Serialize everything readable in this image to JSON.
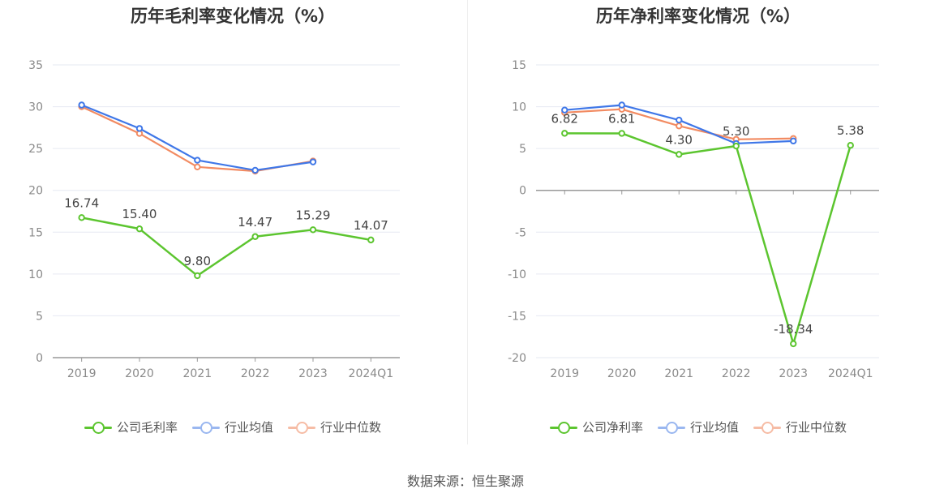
{
  "source_text": "数据来源：恒生聚源",
  "colors": {
    "company": "#5cc52f",
    "industry_avg": "#3f77e8",
    "industry_median": "#f28b62",
    "grid": "#e6e9f2",
    "axis": "#999999"
  },
  "chart_data": [
    {
      "type": "line",
      "title": "历年毛利率变化情况（%）",
      "categories": [
        "2019",
        "2020",
        "2021",
        "2022",
        "2023",
        "2024Q1"
      ],
      "ylim": [
        0,
        35
      ],
      "yticks": [
        0,
        5,
        10,
        15,
        20,
        25,
        30,
        35
      ],
      "ytick_labels": [
        "0",
        "5",
        "10",
        "15",
        "20",
        "25",
        "30",
        "35"
      ],
      "grid": true,
      "legend_position": "bottom",
      "series": [
        {
          "name": "公司毛利率",
          "key": "company",
          "values": [
            16.74,
            15.4,
            9.8,
            14.47,
            15.29,
            14.07
          ],
          "labels": [
            "16.74",
            "15.40",
            "9.80",
            "14.47",
            "15.29",
            "14.07"
          ]
        },
        {
          "name": "行业均值",
          "key": "industry_avg",
          "values": [
            30.2,
            27.4,
            23.6,
            22.4,
            23.4,
            null
          ]
        },
        {
          "name": "行业中位数",
          "key": "industry_median",
          "values": [
            30.0,
            26.8,
            22.8,
            22.3,
            23.5,
            null
          ]
        }
      ]
    },
    {
      "type": "line",
      "title": "历年净利率变化情况（%）",
      "categories": [
        "2019",
        "2020",
        "2021",
        "2022",
        "2023",
        "2024Q1"
      ],
      "ylim": [
        -20,
        15
      ],
      "yticks": [
        -20,
        -15,
        -10,
        -5,
        0,
        5,
        10,
        15
      ],
      "ytick_labels": [
        "-20",
        "-15",
        "-10",
        "-5",
        "0",
        "5",
        "10",
        "15"
      ],
      "grid": true,
      "legend_position": "bottom",
      "series": [
        {
          "name": "公司净利率",
          "key": "company",
          "values": [
            6.82,
            6.81,
            4.3,
            5.3,
            -18.34,
            5.38
          ],
          "labels": [
            "6.82",
            "6.81",
            "4.30",
            "5.30",
            "-18.34",
            "5.38"
          ]
        },
        {
          "name": "行业均值",
          "key": "industry_avg",
          "values": [
            9.6,
            10.2,
            8.4,
            5.6,
            5.9,
            null
          ]
        },
        {
          "name": "行业中位数",
          "key": "industry_median",
          "values": [
            9.3,
            9.7,
            7.7,
            6.1,
            6.2,
            null
          ]
        }
      ]
    }
  ]
}
